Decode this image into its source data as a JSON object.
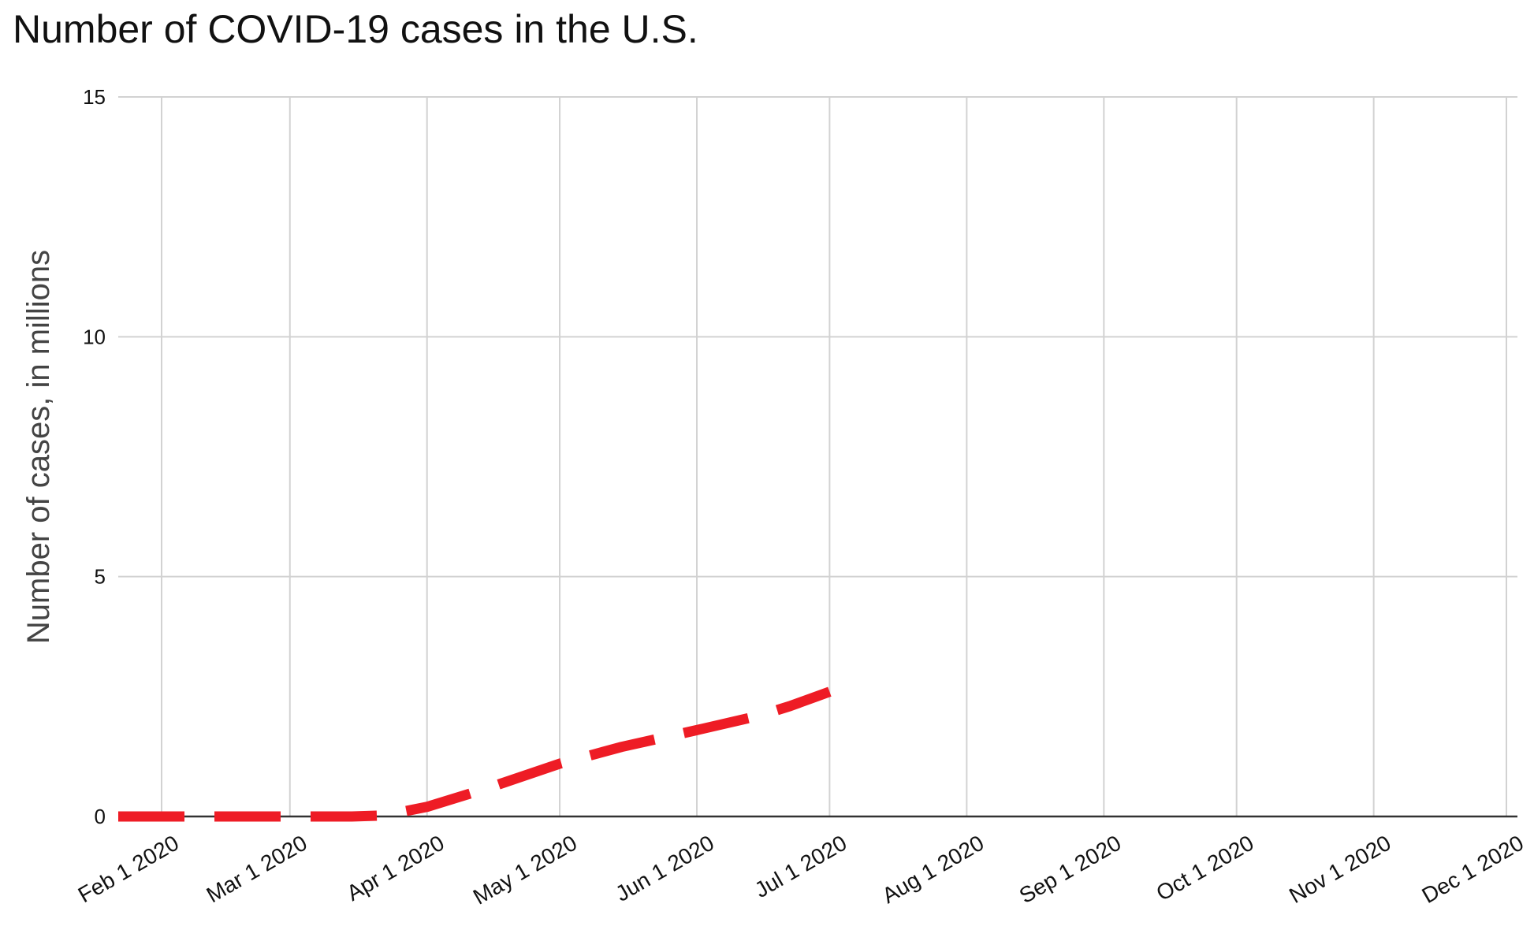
{
  "chart_data": {
    "type": "line",
    "title": "Number of COVID-19 cases in the U.S.",
    "xlabel": "",
    "ylabel": "Number of cases, in millions",
    "x_axis": {
      "type": "date",
      "range": [
        "2020-02-01",
        "2020-12-01"
      ],
      "ticks": [
        {
          "date": "2020-02-01",
          "label": "Feb 1 2020"
        },
        {
          "date": "2020-03-01",
          "label": "Mar 1 2020"
        },
        {
          "date": "2020-04-01",
          "label": "Apr 1 2020"
        },
        {
          "date": "2020-05-01",
          "label": "May 1 2020"
        },
        {
          "date": "2020-06-01",
          "label": "Jun 1 2020"
        },
        {
          "date": "2020-07-01",
          "label": "Jul 1 2020"
        },
        {
          "date": "2020-08-01",
          "label": "Aug 1 2020"
        },
        {
          "date": "2020-09-01",
          "label": "Sep 1 2020"
        },
        {
          "date": "2020-10-01",
          "label": "Oct 1 2020"
        },
        {
          "date": "2020-11-01",
          "label": "Nov 1 2020"
        },
        {
          "date": "2020-12-01",
          "label": "Dec 1 2020"
        }
      ]
    },
    "ylim": [
      0,
      15
    ],
    "yticks": [
      0,
      5,
      10,
      15
    ],
    "grid": true,
    "legend": "none",
    "series": [
      {
        "color": "#ee1c25",
        "line_style": "dashed",
        "x": [
          "2020-01-22",
          "2020-02-15",
          "2020-03-01",
          "2020-03-15",
          "2020-03-22",
          "2020-04-01",
          "2020-04-15",
          "2020-05-01",
          "2020-05-15",
          "2020-06-01",
          "2020-06-15",
          "2020-06-22",
          "2020-07-01"
        ],
        "y": [
          0,
          0,
          0,
          0,
          0.02,
          0.2,
          0.6,
          1.1,
          1.45,
          1.8,
          2.1,
          2.3,
          2.6
        ]
      }
    ]
  }
}
